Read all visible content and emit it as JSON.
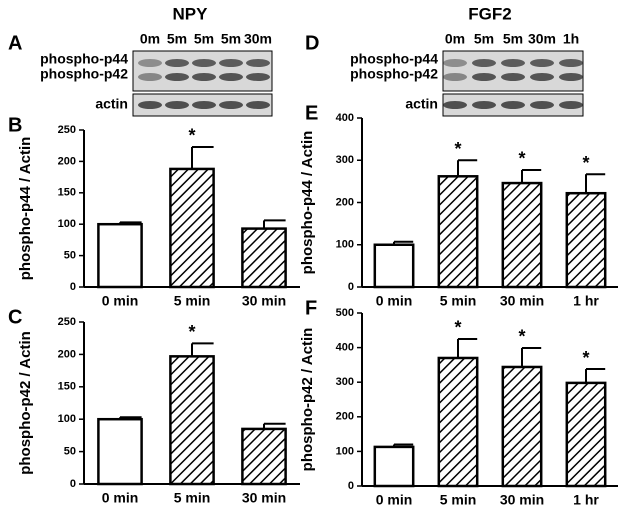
{
  "blots": [
    {
      "panel": "A",
      "title": "NPY",
      "lanes": [
        "0m",
        "5m",
        "5m",
        "5m",
        "30m"
      ],
      "bands": [
        "phospho-p44",
        "phospho-p42"
      ],
      "control": "actin"
    },
    {
      "panel": "D",
      "title": "FGF2",
      "lanes": [
        "0m",
        "5m",
        "5m",
        "30m",
        "1h"
      ],
      "bands": [
        "phospho-p44",
        "phospho-p42"
      ],
      "control": "actin"
    }
  ],
  "chart_data": [
    {
      "type": "bar",
      "panel": "B",
      "ylabel": "phospho-p44 / Actin",
      "categories": [
        "0 min",
        "5 min",
        "30 min"
      ],
      "values": [
        100,
        188,
        93
      ],
      "errors": [
        3,
        35,
        13
      ],
      "hatched": [
        false,
        true,
        true
      ],
      "annotations": [
        null,
        "*",
        null
      ],
      "ylim": [
        0,
        250
      ],
      "yticks": [
        0,
        50,
        100,
        150,
        200,
        250
      ]
    },
    {
      "type": "bar",
      "panel": "C",
      "ylabel": "phospho-p42 / Actin",
      "categories": [
        "0 min",
        "5 min",
        "30 min"
      ],
      "values": [
        100,
        197,
        85
      ],
      "errors": [
        3,
        20,
        8
      ],
      "hatched": [
        false,
        true,
        true
      ],
      "annotations": [
        null,
        "*",
        null
      ],
      "ylim": [
        0,
        250
      ],
      "yticks": [
        0,
        50,
        100,
        150,
        200,
        250
      ]
    },
    {
      "type": "bar",
      "panel": "E",
      "ylabel": "phospho-p44 / Actin",
      "categories": [
        "0 min",
        "5 min",
        "30 min",
        "1 hr"
      ],
      "values": [
        100,
        262,
        246,
        222
      ],
      "errors": [
        7,
        38,
        31,
        45
      ],
      "hatched": [
        false,
        true,
        true,
        true
      ],
      "annotations": [
        null,
        "*",
        "*",
        "*"
      ],
      "ylim": [
        0,
        400
      ],
      "yticks": [
        0,
        100,
        200,
        300,
        400
      ]
    },
    {
      "type": "bar",
      "panel": "F",
      "ylabel": "phospho-p42 / Actin",
      "categories": [
        "0 min",
        "5 min",
        "30 min",
        "1 hr"
      ],
      "values": [
        113,
        370,
        344,
        298
      ],
      "errors": [
        7,
        55,
        55,
        40
      ],
      "hatched": [
        false,
        true,
        true,
        true
      ],
      "annotations": [
        null,
        "*",
        "*",
        "*"
      ],
      "ylim": [
        0,
        500
      ],
      "yticks": [
        0,
        100,
        200,
        300,
        400,
        500
      ]
    }
  ]
}
